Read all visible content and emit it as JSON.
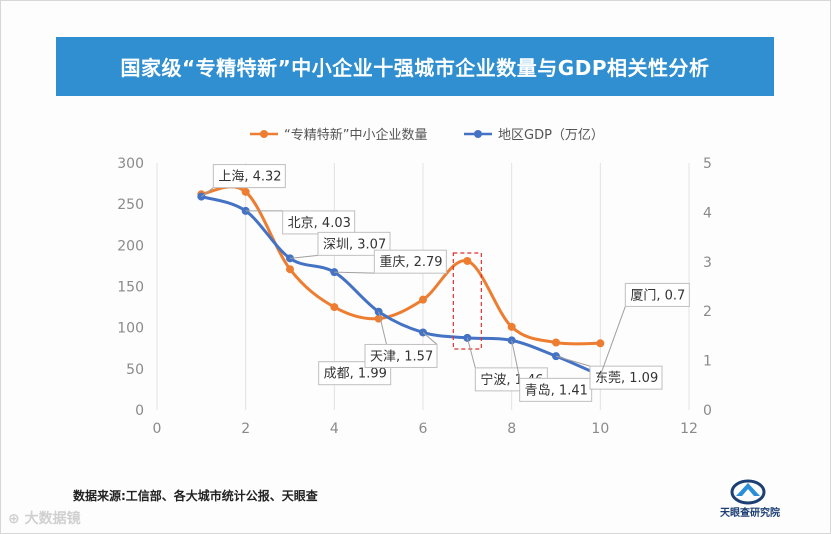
{
  "title": "国家级“专精特新”中小企业十强城市企业数量与GDP相关性分析",
  "footer": {
    "source": "数据来源:工信部、各大城市统计公报、天眼查",
    "logo_text": "天眼查研究院",
    "watermark": "大数据镜"
  },
  "colors": {
    "orange": "#ED7D31",
    "blue": "#4472C4",
    "highlight": "#E0312F",
    "title_bg": "#2f8fd0"
  },
  "chart_data": {
    "type": "line",
    "title": "国家级“专精特新”中小企业十强城市企业数量与GDP相关性分析",
    "x": [
      1,
      2,
      3,
      4,
      5,
      6,
      7,
      8,
      9,
      10
    ],
    "xlim": [
      0,
      12
    ],
    "x_ticks": [
      "0",
      "2",
      "4",
      "6",
      "8",
      "10",
      "12"
    ],
    "x_tick_values": [
      0,
      2,
      4,
      6,
      8,
      10,
      12
    ],
    "ylim_left": [
      0,
      300
    ],
    "y_ticks_left": [
      "0",
      "50",
      "100",
      "150",
      "200",
      "250",
      "300"
    ],
    "y_tick_values_left": [
      0,
      50,
      100,
      150,
      200,
      250,
      300
    ],
    "ylim_right": [
      0,
      5
    ],
    "y_ticks_right": [
      "0",
      "1",
      "2",
      "3",
      "4",
      "5"
    ],
    "y_tick_values_right": [
      0,
      1,
      2,
      3,
      4,
      5
    ],
    "series": [
      {
        "name": "“专精特新”中小企业数量",
        "axis": "left",
        "color": "#ED7D31",
        "values": [
          262,
          265,
          171,
          125,
          111,
          134,
          181,
          101,
          82,
          81
        ]
      },
      {
        "name": "地区GDP（万亿）",
        "axis": "right",
        "color": "#4472C4",
        "values": [
          4.32,
          4.03,
          3.07,
          2.79,
          1.99,
          1.57,
          1.46,
          1.41,
          1.09,
          0.7
        ]
      }
    ],
    "annotations": [
      {
        "label": "上海, 4.32",
        "x": 1,
        "value": 4.32
      },
      {
        "label": "北京, 4.03",
        "x": 2,
        "value": 4.03
      },
      {
        "label": "深圳, 3.07",
        "x": 3,
        "value": 3.07
      },
      {
        "label": "重庆, 2.79",
        "x": 4,
        "value": 2.79
      },
      {
        "label": "成都, 1.99",
        "x": 5,
        "value": 1.99
      },
      {
        "label": "天津, 1.57",
        "x": 6,
        "value": 1.57
      },
      {
        "label": "宁波, 1.46",
        "x": 7,
        "value": 1.46
      },
      {
        "label": "青岛, 1.41",
        "x": 8,
        "value": 1.41
      },
      {
        "label": "东莞, 1.09",
        "x": 9,
        "value": 1.09
      },
      {
        "label": "厦门, 0.7",
        "x": 10,
        "value": 0.7
      }
    ],
    "highlight_x": 7,
    "legend": "top-center",
    "grid": "vertical"
  }
}
